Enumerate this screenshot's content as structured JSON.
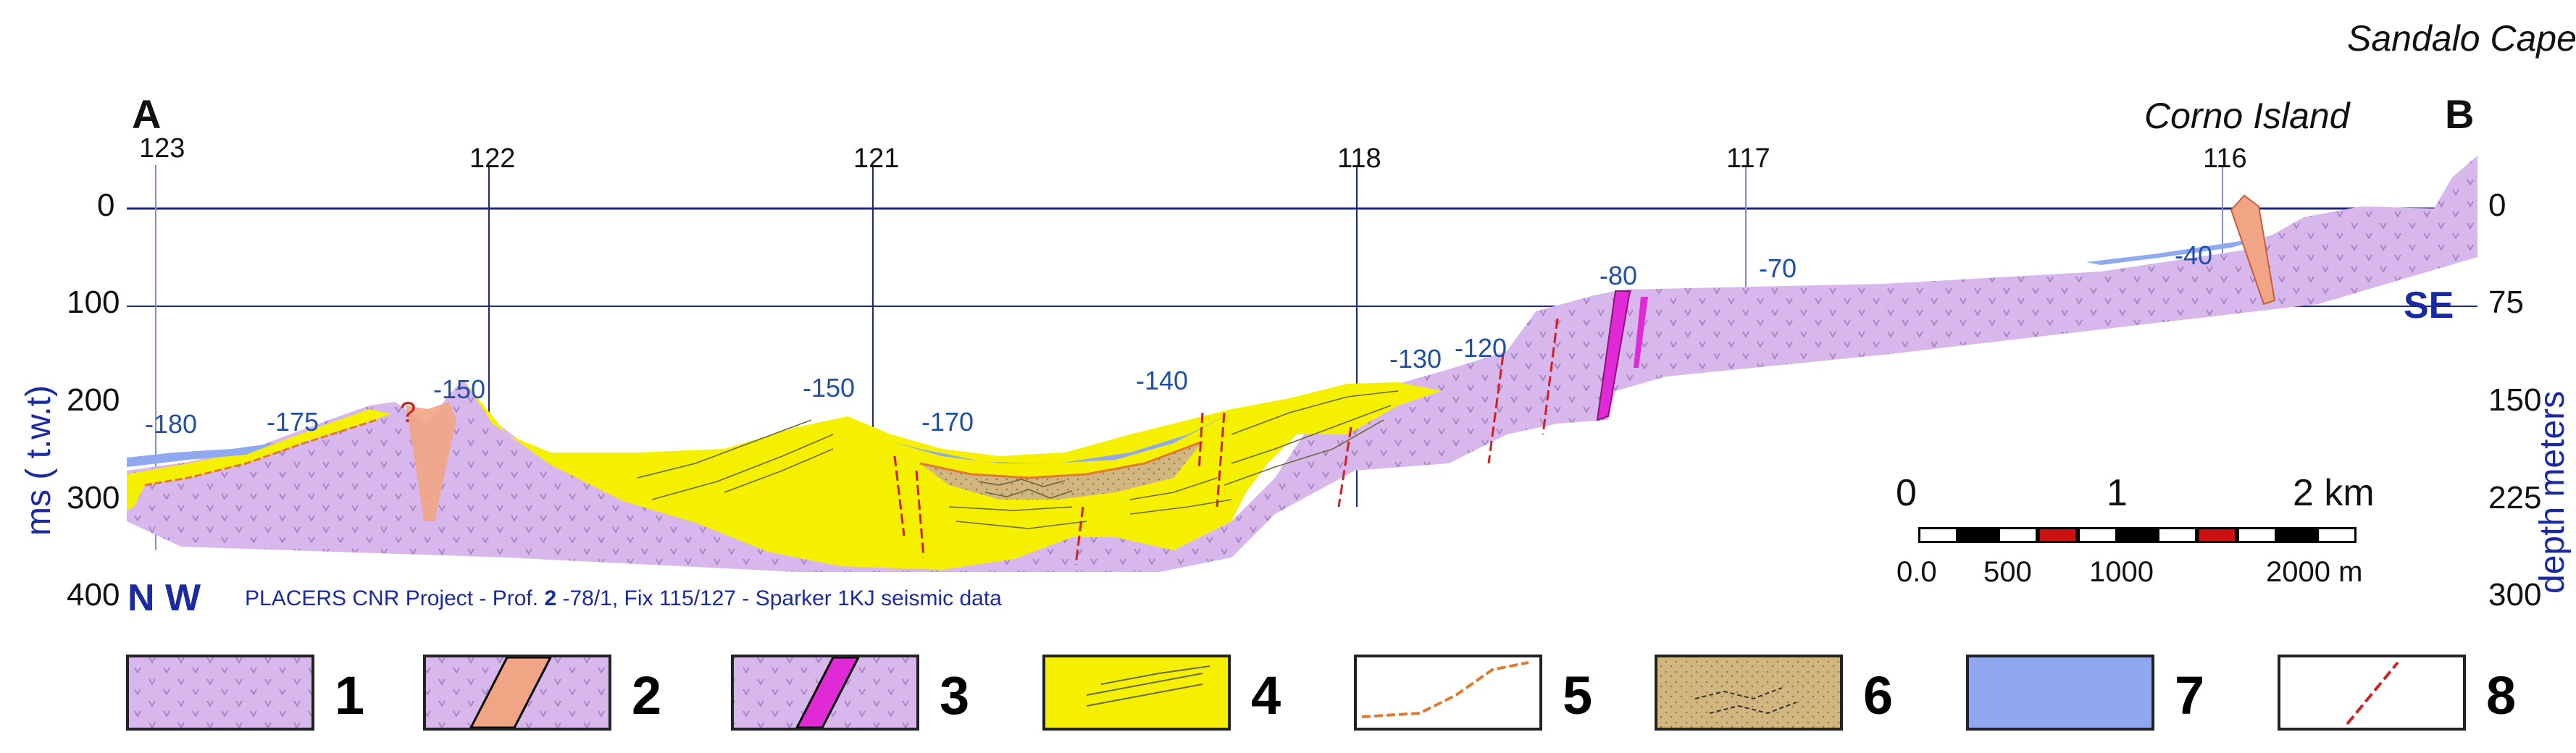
{
  "title_labels": {
    "sandalo": "Sandalo Cape",
    "corno": "Corno Island",
    "end_a": "A",
    "end_b": "B",
    "nw": "N W",
    "se": "SE",
    "caption_pre": "PLACERS CNR Project - Prof. ",
    "caption_bold": "2",
    "caption_post": " -78/1, Fix 115/127 - Sparker 1KJ seismic data"
  },
  "fix_points": [
    "123",
    "122",
    "121",
    "118",
    "117",
    "116"
  ],
  "depth_labels": [
    "-180",
    "-175",
    "-150",
    "-150",
    "-170",
    "-140",
    "-130",
    "-120",
    "-80",
    "-70",
    "-40"
  ],
  "question_mark": "?",
  "left_axis": {
    "title": "ms ( t.w.t)",
    "ticks": [
      "0",
      "100",
      "200",
      "300",
      "400"
    ]
  },
  "right_axis": {
    "title": "depth meters",
    "ticks": [
      "0",
      "75",
      "150",
      "225",
      "300"
    ]
  },
  "scale_bar": {
    "km_labels": [
      "0",
      "1",
      "2 km"
    ],
    "m_labels": [
      "0.0",
      "500",
      "1000",
      "2000 m"
    ]
  },
  "legend": {
    "numbers": [
      "1",
      "2",
      "3",
      "4",
      "5",
      "6",
      "7",
      "8"
    ]
  },
  "colors": {
    "substrate": "#d8b8ec",
    "dyke_pink": "#f2a585",
    "dyke_magenta": "#e02ad6",
    "sediment_yellow": "#f5f000",
    "fill_tan": "#cdb07a",
    "water_blue": "#8fa8f0",
    "fault_red": "#cc2222",
    "unconformity_orange": "#e07a30",
    "axis_navy": "#1b2aa0"
  }
}
